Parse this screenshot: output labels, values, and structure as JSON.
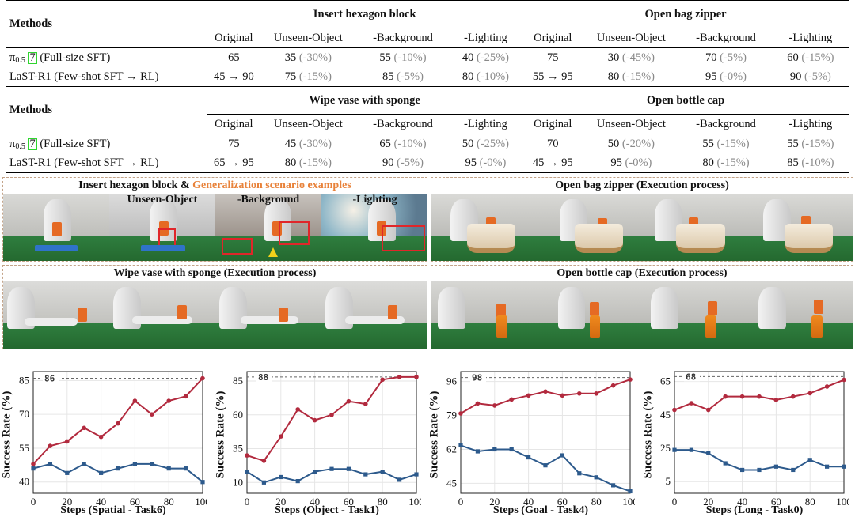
{
  "table": {
    "methods_header": "Methods",
    "condition_headers": [
      "Original",
      "Unseen-Object",
      "-Background",
      "-Lighting"
    ],
    "blocks": [
      {
        "tasks": [
          "Insert hexagon block",
          "Open bag zipper"
        ],
        "rows": [
          {
            "method_pre": "π",
            "method_sub": "0.5",
            "method_ref": "7",
            "method_post": "(Full-size SFT)",
            "cells": [
              {
                "v": "65",
                "d": ""
              },
              {
                "v": "35",
                "d": "(-30%)"
              },
              {
                "v": "55",
                "d": "(-10%)"
              },
              {
                "v": "40",
                "d": "(-25%)"
              },
              {
                "v": "75",
                "d": ""
              },
              {
                "v": "30",
                "d": "(-45%)"
              },
              {
                "v": "70",
                "d": "(-5%)"
              },
              {
                "v": "60",
                "d": "(-15%)"
              }
            ]
          },
          {
            "method_pre": "LaST-R1 (Few-shot SFT → RL)",
            "method_sub": "",
            "method_ref": "",
            "method_post": "",
            "cells": [
              {
                "v": "45 → 90",
                "d": ""
              },
              {
                "v": "75",
                "d": "(-15%)"
              },
              {
                "v": "85",
                "d": "(-5%)"
              },
              {
                "v": "80",
                "d": "(-10%)"
              },
              {
                "v": "55 → 95",
                "d": ""
              },
              {
                "v": "80",
                "d": "(-15%)"
              },
              {
                "v": "95",
                "d": "(-0%)"
              },
              {
                "v": "90",
                "d": "(-5%)"
              }
            ]
          }
        ]
      },
      {
        "tasks": [
          "Wipe vase with sponge",
          "Open bottle cap"
        ],
        "rows": [
          {
            "method_pre": "π",
            "method_sub": "0.5",
            "method_ref": "7",
            "method_post": "(Full-size SFT)",
            "cells": [
              {
                "v": "75",
                "d": ""
              },
              {
                "v": "45",
                "d": "(-30%)"
              },
              {
                "v": "65",
                "d": "(-10%)"
              },
              {
                "v": "50",
                "d": "(-25%)"
              },
              {
                "v": "70",
                "d": ""
              },
              {
                "v": "50",
                "d": "(-20%)"
              },
              {
                "v": "55",
                "d": "(-15%)"
              },
              {
                "v": "55",
                "d": "(-15%)"
              }
            ]
          },
          {
            "method_pre": "LaST-R1 (Few-shot SFT → RL)",
            "method_sub": "",
            "method_ref": "",
            "method_post": "",
            "cells": [
              {
                "v": "65 → 95",
                "d": ""
              },
              {
                "v": "80",
                "d": "(-15%)"
              },
              {
                "v": "90",
                "d": "(-5%)"
              },
              {
                "v": "95",
                "d": "(-0%)"
              },
              {
                "v": "45 → 95",
                "d": ""
              },
              {
                "v": "95",
                "d": "(-0%)"
              },
              {
                "v": "80",
                "d": "(-15%)"
              },
              {
                "v": "85",
                "d": "(-10%)"
              }
            ]
          }
        ]
      }
    ]
  },
  "panels": {
    "hexagon": {
      "title_main": "Insert hexagon block & ",
      "title_highlight": "Generalization scenario examples",
      "scenario_labels": [
        "Unseen-Object",
        "-Background",
        "-Lighting"
      ]
    },
    "zipper": {
      "title": "Open bag zipper (Execution process)"
    },
    "sponge": {
      "title": "Wipe vase with sponge (Execution process)"
    },
    "bottle": {
      "title": "Open bottle cap (Execution process)"
    },
    "colors": {
      "highlight": "#e8823a",
      "border": "#c4a489",
      "floor": "#2f7e3f",
      "gripper": "#e56a24",
      "box": "#e0262a"
    }
  },
  "chart_data": [
    {
      "type": "line",
      "ylabel": "Success Rate (%)",
      "xlabel": "Steps (Spatial - Task6)",
      "x": [
        0,
        10,
        20,
        30,
        40,
        50,
        60,
        70,
        80,
        90,
        100
      ],
      "xticks": [
        0,
        20,
        40,
        60,
        80,
        100
      ],
      "yticks": [
        40,
        55,
        70,
        85
      ],
      "ylim": [
        35,
        89
      ],
      "ref_line": 86,
      "series": [
        {
          "color": "#b22a3e",
          "values": [
            48,
            56,
            58,
            64,
            60,
            66,
            76,
            70,
            76,
            78,
            86
          ]
        },
        {
          "color": "#2d5a8c",
          "values": [
            46,
            48,
            44,
            48,
            44,
            46,
            48,
            48,
            46,
            46,
            40
          ]
        }
      ]
    },
    {
      "type": "line",
      "ylabel": "Success Rate (%)",
      "xlabel": "Steps (Object - Task1)",
      "x": [
        0,
        10,
        20,
        30,
        40,
        50,
        60,
        70,
        80,
        90,
        100
      ],
      "xticks": [
        0,
        20,
        40,
        60,
        80,
        100
      ],
      "yticks": [
        10,
        35,
        60,
        85
      ],
      "ylim": [
        2,
        92
      ],
      "ref_line": 88,
      "series": [
        {
          "color": "#b22a3e",
          "values": [
            30,
            26,
            44,
            64,
            56,
            60,
            70,
            68,
            86,
            88,
            88
          ]
        },
        {
          "color": "#2d5a8c",
          "values": [
            18,
            10,
            14,
            11,
            18,
            20,
            20,
            16,
            18,
            12,
            16
          ]
        }
      ]
    },
    {
      "type": "line",
      "ylabel": "Success Rate (%)",
      "xlabel": "Steps (Goal - Task4)",
      "x": [
        0,
        10,
        20,
        30,
        40,
        50,
        60,
        70,
        80,
        90,
        100
      ],
      "xticks": [
        0,
        20,
        40,
        60,
        80,
        100
      ],
      "yticks": [
        45,
        62,
        79,
        96
      ],
      "ylim": [
        40,
        101
      ],
      "ref_line": 98,
      "series": [
        {
          "color": "#b22a3e",
          "values": [
            80,
            85,
            84,
            87,
            89,
            91,
            89,
            90,
            90,
            94,
            97
          ]
        },
        {
          "color": "#2d5a8c",
          "values": [
            64,
            61,
            62,
            62,
            58,
            54,
            59,
            50,
            48,
            44,
            41
          ]
        }
      ]
    },
    {
      "type": "line",
      "ylabel": "Success Rate (%)",
      "xlabel": "Steps (Long - Task0)",
      "x": [
        0,
        10,
        20,
        30,
        40,
        50,
        60,
        70,
        80,
        90,
        100
      ],
      "xticks": [
        0,
        20,
        40,
        60,
        80,
        100
      ],
      "yticks": [
        5,
        25,
        45,
        65
      ],
      "ylim": [
        -2,
        71
      ],
      "ref_line": 68,
      "series": [
        {
          "color": "#b22a3e",
          "values": [
            48,
            52,
            48,
            56,
            56,
            56,
            54,
            56,
            58,
            62,
            66
          ]
        },
        {
          "color": "#2d5a8c",
          "values": [
            24,
            24,
            22,
            16,
            12,
            12,
            14,
            12,
            18,
            14,
            14
          ]
        }
      ]
    }
  ]
}
